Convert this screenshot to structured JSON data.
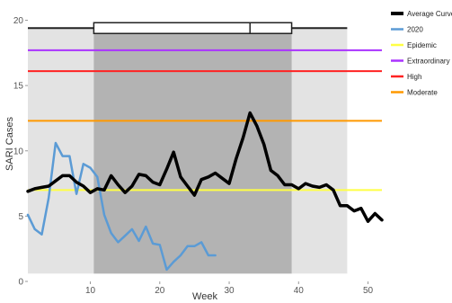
{
  "chart_data": {
    "type": "line",
    "xlabel": "Week",
    "ylabel": "SARI Cases",
    "xlim": [
      1,
      52
    ],
    "ylim": [
      0,
      21
    ],
    "xticks": [
      10,
      20,
      30,
      40,
      50
    ],
    "yticks": [
      0,
      5,
      10,
      15,
      20
    ],
    "legend_position": "right",
    "shaded_regions": [
      {
        "x0": 1,
        "x1": 47,
        "color": "#e3e3e3"
      },
      {
        "x0": 10.5,
        "x1": 39,
        "color": "#b3b3b3"
      }
    ],
    "box": {
      "y": 19.4,
      "x0": 10.5,
      "x1": 39,
      "median": 33
    },
    "whisker": {
      "y": 19.4,
      "x0": 1,
      "x1": 47
    },
    "thresholds": [
      {
        "name": "Epidemic",
        "value": 7.0,
        "color": "#ffff44"
      },
      {
        "name": "Extraordinary",
        "value": 17.7,
        "color": "#aa33ff"
      },
      {
        "name": "High",
        "value": 16.1,
        "color": "#ff2222"
      },
      {
        "name": "Moderate",
        "value": 12.3,
        "color": "#ff9900"
      }
    ],
    "series": [
      {
        "name": "Average Curve",
        "color": "#000000",
        "x": [
          1,
          2,
          3,
          4,
          5,
          6,
          7,
          8,
          9,
          10,
          11,
          12,
          13,
          14,
          15,
          16,
          17,
          18,
          19,
          20,
          21,
          22,
          23,
          24,
          25,
          26,
          27,
          28,
          29,
          30,
          31,
          32,
          33,
          34,
          35,
          36,
          37,
          38,
          39,
          40,
          41,
          42,
          43,
          44,
          45,
          46,
          47,
          48,
          49,
          50,
          51,
          52
        ],
        "values": [
          6.9,
          7.1,
          7.2,
          7.3,
          7.7,
          8.1,
          8.1,
          7.6,
          7.3,
          6.8,
          7.1,
          7.0,
          8.1,
          7.4,
          6.8,
          7.3,
          8.2,
          8.1,
          7.6,
          7.4,
          8.6,
          9.9,
          8.0,
          7.3,
          6.6,
          7.8,
          8.0,
          8.3,
          7.9,
          7.5,
          9.4,
          11.0,
          12.9,
          11.9,
          10.5,
          8.5,
          8.1,
          7.4,
          7.4,
          7.1,
          7.5,
          7.3,
          7.2,
          7.4,
          7.0,
          5.8,
          5.8,
          5.4,
          5.6,
          4.6,
          5.2,
          4.7
        ]
      },
      {
        "name": "2020",
        "color": "#5b9bd5",
        "x": [
          1,
          2,
          3,
          4,
          5,
          6,
          7,
          8,
          9,
          10,
          11,
          12,
          13,
          14,
          15,
          16,
          17,
          18,
          19,
          20,
          21,
          22,
          23,
          24,
          25,
          26,
          27,
          28
        ],
        "values": [
          5.1,
          4.0,
          3.6,
          6.4,
          10.6,
          9.6,
          9.6,
          6.7,
          9.0,
          8.7,
          8.0,
          5.1,
          3.7,
          3.0,
          3.5,
          4.0,
          3.1,
          4.2,
          2.9,
          2.8,
          0.9,
          1.5,
          2.0,
          2.7,
          2.7,
          3.0,
          2.0,
          2.0
        ]
      }
    ]
  }
}
